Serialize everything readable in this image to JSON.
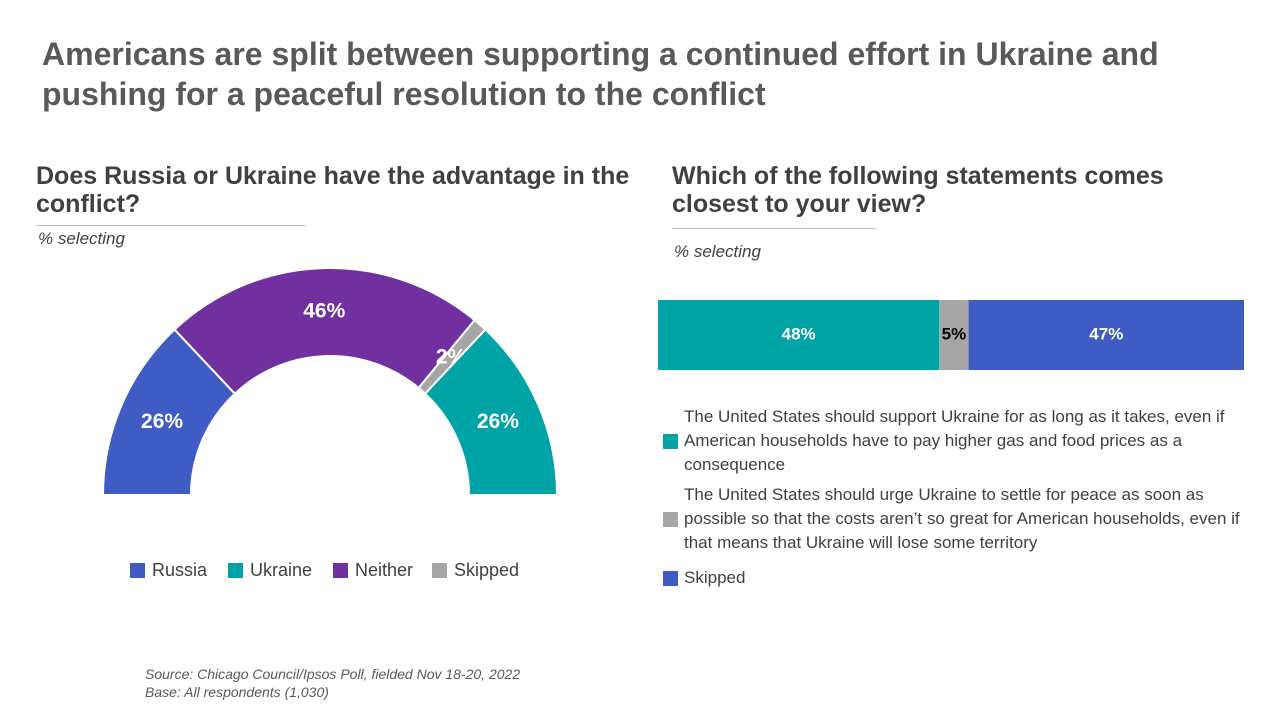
{
  "title": "Americans are split between supporting a continued effort in Ukraine and pushing for a peaceful resolution to the conflict",
  "source": "Source: Chicago Council/Ipsos Poll, fielded Nov 18-20, 2022",
  "base": "Base: All respondents (1,030)",
  "chart_data": [
    {
      "type": "donut",
      "title": "Does Russia or Ukraine have the advantage in the conflict?",
      "subtitle": "% selecting",
      "categories": [
        "Russia",
        "Ukraine",
        "Neither",
        "Skipped"
      ],
      "values": [
        26,
        26,
        46,
        2
      ],
      "value_labels": [
        "26%",
        "26%",
        "46%",
        "2%"
      ],
      "colors": [
        "#3f5bc4",
        "#00a3a6",
        "#7030a0",
        "#a6a6a6"
      ]
    },
    {
      "type": "stacked-bar",
      "title": "Which of the following statements comes closest to your view?",
      "subtitle": "% selecting",
      "series": [
        {
          "name": "The United States should support Ukraine for as long as it takes, even if American households have to pay higher gas and food prices as a consequence",
          "color": "#00a3a6",
          "values": [
            48
          ],
          "value_labels": [
            "48%"
          ]
        },
        {
          "name": "The United States should urge Ukraine to settle for peace as soon as possible so that the costs aren’t so great for American households, even if that means that Ukraine will lose some territory",
          "color": "#a6a6a6",
          "values": [
            5
          ],
          "value_labels": [
            "5%"
          ]
        },
        {
          "name": "Skipped",
          "color": "#3f5bc4",
          "values": [
            47
          ],
          "value_labels": [
            "47%"
          ]
        }
      ]
    }
  ]
}
